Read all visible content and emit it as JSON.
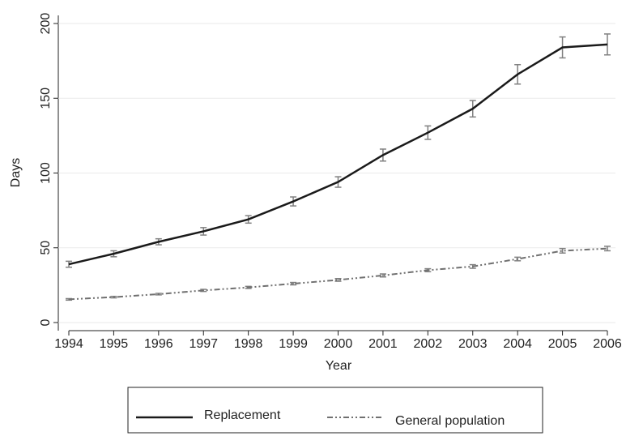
{
  "chart_data": {
    "type": "line",
    "x_label": "Year",
    "y_label": "Days",
    "x": [
      1994,
      1995,
      1996,
      1997,
      1998,
      1999,
      2000,
      2001,
      2002,
      2003,
      2004,
      2005,
      2006
    ],
    "xlim": [
      1994,
      2006
    ],
    "xticks": [
      1994,
      1995,
      1996,
      1997,
      1998,
      1999,
      2000,
      2001,
      2002,
      2003,
      2004,
      2005,
      2006
    ],
    "ylim": [
      0,
      200
    ],
    "yticks": [
      0,
      50,
      100,
      150,
      200
    ],
    "grid": true,
    "series": [
      {
        "name": "Replacement",
        "color": "#1a1a1a",
        "dash": "solid",
        "error_color": "#808080",
        "values": [
          39,
          46,
          54,
          61,
          69,
          81,
          94,
          112,
          127,
          143,
          166,
          184,
          186
        ],
        "errors": [
          2,
          2,
          2,
          2.5,
          2.5,
          3,
          3.5,
          4,
          4.5,
          5.5,
          6.5,
          7,
          7
        ]
      },
      {
        "name": "General population",
        "color": "#707070",
        "dash": "dash-dot-dot",
        "error_color": "#808080",
        "values": [
          15.5,
          17,
          19,
          21.5,
          23.5,
          26,
          28.5,
          31.5,
          35,
          37.5,
          42.5,
          48,
          49.5
        ],
        "errors": [
          0.5,
          0.5,
          0.5,
          0.7,
          0.7,
          0.8,
          0.9,
          1,
          1,
          1.2,
          1.2,
          1.5,
          1.5
        ]
      }
    ]
  }
}
